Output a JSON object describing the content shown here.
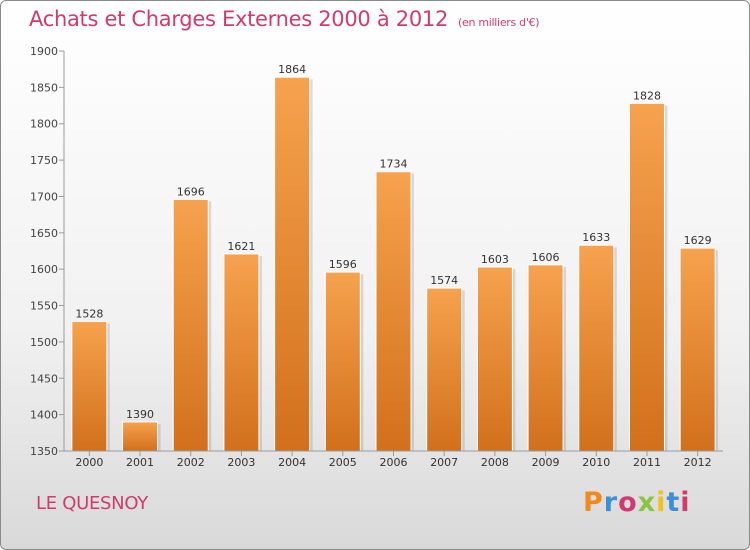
{
  "header": {
    "title": "Achats et Charges Externes 2000 à 2012",
    "unit": "(en milliers d'€)"
  },
  "footer": {
    "city": "LE QUESNOY",
    "brand": "Proxiti",
    "brand_colors": [
      "#f08a1c",
      "#3a8fd8",
      "#d23a6e",
      "#8bc43f",
      "#f2c21c",
      "#3a8fd8",
      "#d23a6e"
    ]
  },
  "chart_data": {
    "type": "bar",
    "title": "Achats et Charges Externes 2000 à 2012",
    "xlabel": "",
    "ylabel": "",
    "categories": [
      "2000",
      "2001",
      "2002",
      "2003",
      "2004",
      "2005",
      "2006",
      "2007",
      "2008",
      "2009",
      "2010",
      "2011",
      "2012"
    ],
    "values": [
      1528,
      1390,
      1696,
      1621,
      1864,
      1596,
      1734,
      1574,
      1603,
      1606,
      1633,
      1828,
      1629
    ],
    "ylim": [
      1350,
      1900
    ],
    "yticks": [
      1350,
      1400,
      1450,
      1500,
      1550,
      1600,
      1650,
      1700,
      1750,
      1800,
      1850,
      1900
    ],
    "grid": false,
    "bar_color_top": "#f6a24e",
    "bar_color_bottom": "#d2701c"
  }
}
